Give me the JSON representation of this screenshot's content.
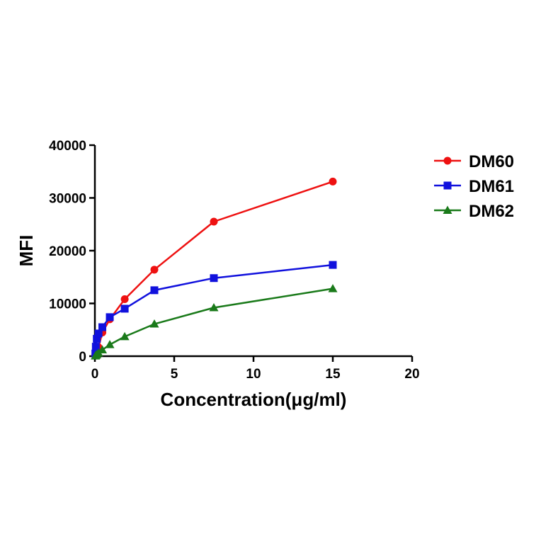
{
  "chart_data": {
    "type": "line",
    "title": "",
    "xlabel": "Concentration(μg/ml)",
    "ylabel": "MFI",
    "xlim": [
      0,
      20
    ],
    "ylim": [
      0,
      40000
    ],
    "xticks": [
      0,
      5,
      10,
      15,
      20
    ],
    "yticks": [
      0,
      10000,
      20000,
      30000,
      40000
    ],
    "grid": false,
    "legend_position": "top-right",
    "series": [
      {
        "name": "DM60",
        "color": "#ee1111",
        "marker": "circle",
        "points": [
          {
            "x": 0.03,
            "y": 200
          },
          {
            "x": 0.06,
            "y": 500
          },
          {
            "x": 0.12,
            "y": 1000
          },
          {
            "x": 0.23,
            "y": 1700
          },
          {
            "x": 0.47,
            "y": 4500
          },
          {
            "x": 0.94,
            "y": 7000
          },
          {
            "x": 1.88,
            "y": 10800
          },
          {
            "x": 3.75,
            "y": 16400
          },
          {
            "x": 7.5,
            "y": 25500
          },
          {
            "x": 15,
            "y": 33100
          }
        ]
      },
      {
        "name": "DM61",
        "color": "#1111dd",
        "marker": "square",
        "points": [
          {
            "x": 0.03,
            "y": 500
          },
          {
            "x": 0.06,
            "y": 1800
          },
          {
            "x": 0.12,
            "y": 3300
          },
          {
            "x": 0.23,
            "y": 4300
          },
          {
            "x": 0.47,
            "y": 5500
          },
          {
            "x": 0.94,
            "y": 7400
          },
          {
            "x": 1.88,
            "y": 9000
          },
          {
            "x": 3.75,
            "y": 12500
          },
          {
            "x": 7.5,
            "y": 14800
          },
          {
            "x": 15,
            "y": 17300
          }
        ]
      },
      {
        "name": "DM62",
        "color": "#1a7a1a",
        "marker": "triangle",
        "points": [
          {
            "x": 0.03,
            "y": 50
          },
          {
            "x": 0.06,
            "y": 150
          },
          {
            "x": 0.12,
            "y": 300
          },
          {
            "x": 0.23,
            "y": 600
          },
          {
            "x": 0.47,
            "y": 1200
          },
          {
            "x": 0.94,
            "y": 2200
          },
          {
            "x": 1.88,
            "y": 3700
          },
          {
            "x": 3.75,
            "y": 6100
          },
          {
            "x": 7.5,
            "y": 9200
          },
          {
            "x": 15,
            "y": 12800
          }
        ]
      }
    ]
  }
}
